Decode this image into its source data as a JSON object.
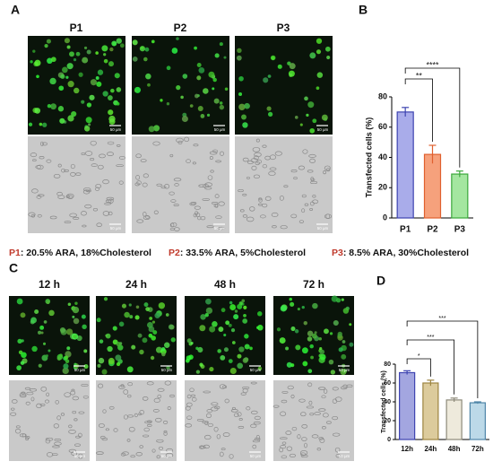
{
  "panel_labels": [
    "A",
    "B",
    "C",
    "D"
  ],
  "panel_a": {
    "columns": [
      "P1",
      "P2",
      "P3"
    ]
  },
  "panel_c": {
    "columns": [
      "12 h",
      "24 h",
      "48 h",
      "72 h"
    ]
  },
  "scale_bar_label": "50 μm",
  "legend": [
    {
      "label": "P1",
      "text": ": 20.5% ARA, 18%Cholesterol"
    },
    {
      "label": "P2",
      "text": ": 33.5% ARA, 5%Cholesterol"
    },
    {
      "label": "P3",
      "text": ": 8.5% ARA, 30%Cholesterol"
    }
  ],
  "chart_data": [
    {
      "type": "bar",
      "y_label": "Transfected cells (%)",
      "categories": [
        "P1",
        "P2",
        "P3"
      ],
      "values": [
        70,
        42,
        29
      ],
      "errors": [
        3,
        6,
        2
      ],
      "colors": [
        "#a9acea",
        "#f6a17c",
        "#a4e6a0"
      ],
      "edge_colors": [
        "#3d43b0",
        "#e0602e",
        "#3aa83a"
      ],
      "ylim": [
        0,
        80
      ],
      "yticks": [
        0,
        20,
        40,
        60,
        80
      ],
      "significance": [
        {
          "pair": [
            "P1",
            "P2"
          ],
          "label": "**"
        },
        {
          "pair": [
            "P1",
            "P3"
          ],
          "label": "****"
        }
      ]
    },
    {
      "type": "bar",
      "y_label": "Transfected cells (%)",
      "categories": [
        "12h",
        "24h",
        "48h",
        "72h"
      ],
      "values": [
        71,
        60,
        42,
        39
      ],
      "errors": [
        2,
        3,
        2,
        1
      ],
      "colors": [
        "#a3a6e0",
        "#dccb9c",
        "#eeeadc",
        "#bcd9e8"
      ],
      "edge_colors": [
        "#3d43b0",
        "#9c8440",
        "#8d8a7a",
        "#4f86a8"
      ],
      "ylim": [
        0,
        80
      ],
      "yticks": [
        0,
        20,
        40,
        60,
        80
      ],
      "significance": [
        {
          "pair": [
            "12h",
            "24h"
          ],
          "label": "*"
        },
        {
          "pair": [
            "12h",
            "48h"
          ],
          "label": "***"
        },
        {
          "pair": [
            "12h",
            "72h"
          ],
          "label": "***"
        }
      ]
    }
  ]
}
